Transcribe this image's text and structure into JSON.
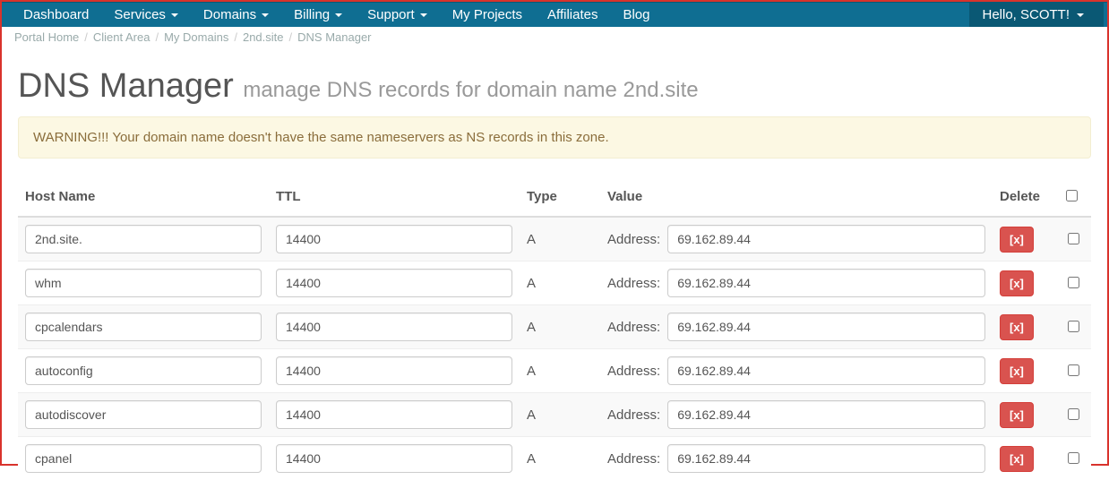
{
  "nav": {
    "items": [
      {
        "label": "Dashboard",
        "dropdown": false
      },
      {
        "label": "Services",
        "dropdown": true
      },
      {
        "label": "Domains",
        "dropdown": true
      },
      {
        "label": "Billing",
        "dropdown": true
      },
      {
        "label": "Support",
        "dropdown": true
      },
      {
        "label": "My Projects",
        "dropdown": false
      },
      {
        "label": "Affiliates",
        "dropdown": false
      },
      {
        "label": "Blog",
        "dropdown": false
      }
    ],
    "user_label": "Hello, SCOTT!"
  },
  "breadcrumbs": {
    "items": [
      "Portal Home",
      "Client Area",
      "My Domains",
      "2nd.site",
      "DNS Manager"
    ]
  },
  "heading": {
    "title": "DNS Manager",
    "subtitle": "manage DNS records for domain name 2nd.site"
  },
  "warning": "WARNING!!! Your domain name doesn't have the same nameservers as NS records in this zone.",
  "table": {
    "columns": {
      "host": "Host Name",
      "ttl": "TTL",
      "type": "Type",
      "value": "Value",
      "delete": "Delete"
    },
    "value_label": "Address:",
    "delete_button_label": "[x]",
    "rows": [
      {
        "host": "2nd.site.",
        "ttl": "14400",
        "type": "A",
        "value": "69.162.89.44"
      },
      {
        "host": "whm",
        "ttl": "14400",
        "type": "A",
        "value": "69.162.89.44"
      },
      {
        "host": "cpcalendars",
        "ttl": "14400",
        "type": "A",
        "value": "69.162.89.44"
      },
      {
        "host": "autoconfig",
        "ttl": "14400",
        "type": "A",
        "value": "69.162.89.44"
      },
      {
        "host": "autodiscover",
        "ttl": "14400",
        "type": "A",
        "value": "69.162.89.44"
      },
      {
        "host": "cpanel",
        "ttl": "14400",
        "type": "A",
        "value": "69.162.89.44"
      }
    ]
  },
  "colors": {
    "navbar_bg": "#0f6e92",
    "navbar_dark": "#0a5874",
    "border_outer": "#d9332c",
    "warning_bg": "#fcf8e3",
    "warning_text": "#8a6d3b",
    "danger_btn": "#d9534f"
  }
}
